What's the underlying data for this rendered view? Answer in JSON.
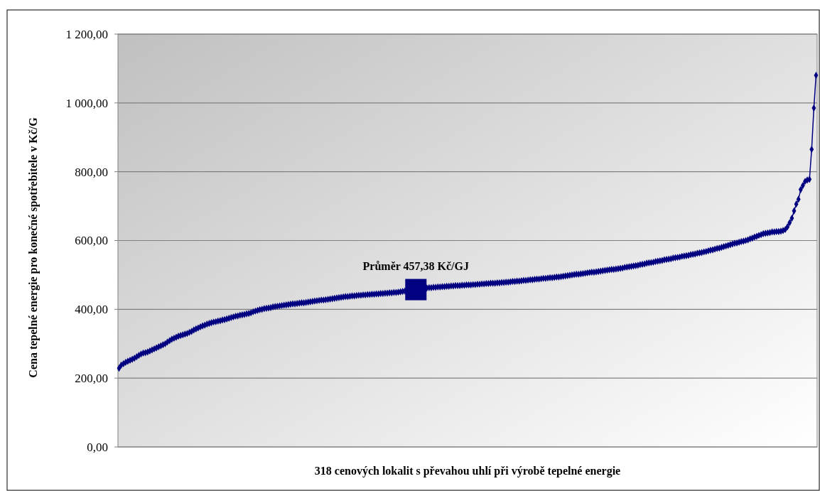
{
  "chart_data": {
    "type": "line",
    "xlabel": "318 cenových lokalit s převahou uhlí při výrobě tepelné energie",
    "ylabel": "Cena tepelné energie pro konečné spotřebitele v Kč/G",
    "categories": [
      null,
      null,
      null,
      null,
      null,
      null,
      null,
      null,
      null,
      null,
      null,
      null,
      null,
      null,
      null,
      null,
      null,
      null,
      null,
      null,
      null,
      null,
      null,
      null,
      null,
      null,
      null,
      null,
      null,
      null,
      null,
      null,
      null,
      null,
      null,
      null,
      null,
      null,
      null,
      null,
      null,
      null,
      null,
      null,
      null,
      null,
      null,
      null,
      null,
      null,
      null,
      null,
      null,
      null,
      null,
      null,
      null,
      null,
      null,
      null,
      null,
      null,
      null,
      null,
      null,
      null,
      null,
      null,
      null,
      null,
      null,
      null,
      null,
      null,
      null,
      null,
      null,
      null,
      null,
      null,
      null,
      null,
      null,
      null,
      null,
      null,
      null,
      null,
      null,
      null,
      null,
      null,
      null,
      null,
      null,
      null,
      null,
      null,
      null,
      null,
      null,
      null,
      null,
      null,
      null,
      null,
      null,
      null,
      null,
      null,
      null,
      null,
      null,
      null,
      null,
      null,
      null,
      null,
      null,
      null,
      null,
      null,
      null,
      null,
      null,
      null,
      null,
      null,
      null,
      null,
      null,
      null,
      null,
      null,
      null,
      null,
      null,
      null,
      null,
      null,
      null,
      null,
      null,
      null,
      null,
      null,
      null,
      null,
      null,
      null,
      null,
      null,
      null,
      null,
      null,
      null,
      null,
      null,
      null,
      null,
      null,
      null,
      null,
      null,
      null,
      null,
      null,
      null,
      null,
      null,
      null,
      null,
      null,
      null,
      null,
      null,
      null,
      null,
      null,
      null,
      null,
      null,
      null,
      null,
      null,
      null,
      null,
      null,
      null,
      null,
      null,
      null,
      null,
      null,
      null,
      null,
      null,
      null,
      null,
      null,
      null,
      null,
      null,
      null,
      null,
      null,
      null,
      null,
      null,
      null,
      null,
      null,
      null,
      null,
      null,
      null,
      null,
      null,
      null,
      null,
      null,
      null,
      null,
      null,
      null,
      null,
      null,
      null,
      null,
      null,
      null,
      null,
      null,
      null,
      null,
      null,
      null,
      null,
      null,
      null,
      null,
      null,
      null,
      null,
      null,
      null,
      null,
      null,
      null,
      null,
      null,
      null,
      null,
      null,
      null,
      null,
      null,
      null,
      null,
      null,
      null,
      null,
      null,
      null,
      null,
      null,
      null,
      null,
      null,
      null,
      null,
      null,
      null,
      null,
      null,
      null,
      null,
      null,
      null,
      null,
      null,
      null,
      null,
      null,
      null,
      null,
      null,
      null,
      null,
      null,
      null,
      null,
      null,
      null,
      null,
      null,
      null,
      null,
      null,
      null,
      null,
      null,
      null,
      null,
      null,
      null,
      null,
      null,
      null,
      null,
      null,
      null,
      null,
      null,
      null,
      null,
      null,
      null
    ],
    "ylim": [
      0,
      1200
    ],
    "yticks": [
      {
        "value": 0,
        "label": "0,00"
      },
      {
        "value": 200,
        "label": "200,00"
      },
      {
        "value": 400,
        "label": "400,00"
      },
      {
        "value": 600,
        "label": "600,00"
      },
      {
        "value": 800,
        "label": "800,00"
      },
      {
        "value": 1000,
        "label": "1 000,00"
      },
      {
        "value": 1200,
        "label": "1 200,00"
      }
    ],
    "tick_labels": "y",
    "grid": "y",
    "marker": "diamond",
    "line_style": "solid",
    "series": [
      {
        "color": "#000080",
        "values": [
          229,
          238,
          242,
          246,
          249,
          252,
          255,
          258,
          262,
          266,
          270,
          273,
          274,
          276,
          279,
          282,
          285,
          288,
          291,
          294,
          297,
          300,
          305,
          309,
          313,
          316,
          319,
          322,
          324,
          326,
          328,
          330,
          333,
          336,
          340,
          343,
          346,
          349,
          352,
          354,
          357,
          359,
          361,
          363,
          364,
          366,
          367,
          369,
          370,
          372,
          374,
          376,
          378,
          380,
          381,
          383,
          384,
          385,
          387,
          388,
          390,
          393,
          395,
          397,
          399,
          400,
          402,
          403,
          404,
          405,
          407,
          408,
          409,
          410,
          411,
          412,
          413,
          414,
          415,
          416,
          416,
          417,
          418,
          419,
          419,
          420,
          421,
          422,
          423,
          424,
          425,
          426,
          427,
          427,
          428,
          429,
          430,
          431,
          432,
          433,
          434,
          435,
          436,
          437,
          437,
          438,
          439,
          439,
          440,
          441,
          441,
          442,
          442,
          443,
          443,
          444,
          444,
          445,
          445,
          446,
          446,
          447,
          447,
          448,
          448,
          449,
          449,
          450,
          451,
          452,
          453,
          454,
          455,
          456,
          457,
          458,
          459,
          460,
          461,
          462,
          462,
          463,
          463,
          464,
          464,
          465,
          465,
          466,
          466,
          467,
          467,
          468,
          468,
          469,
          469,
          469,
          470,
          470,
          471,
          471,
          471,
          472,
          472,
          473,
          473,
          474,
          474,
          475,
          475,
          476,
          476,
          476,
          477,
          477,
          478,
          478,
          479,
          479,
          480,
          481,
          481,
          482,
          482,
          483,
          484,
          484,
          485,
          486,
          486,
          487,
          488,
          488,
          489,
          490,
          490,
          491,
          492,
          492,
          493,
          494,
          494,
          495,
          496,
          497,
          498,
          499,
          500,
          501,
          502,
          502,
          503,
          504,
          505,
          506,
          507,
          508,
          508,
          509,
          510,
          511,
          512,
          513,
          514,
          515,
          516,
          516,
          517,
          518,
          519,
          520,
          522,
          523,
          524,
          525,
          526,
          527,
          528,
          530,
          531,
          532,
          534,
          535,
          536,
          537,
          539,
          540,
          541,
          542,
          544,
          545,
          546,
          547,
          549,
          550,
          551,
          552,
          554,
          555,
          556,
          557,
          559,
          560,
          561,
          563,
          564,
          565,
          567,
          568,
          570,
          572,
          573,
          575,
          577,
          578,
          580,
          582,
          584,
          586,
          588,
          590,
          592,
          593,
          595,
          597,
          598,
          600,
          602,
          605,
          607,
          610,
          612,
          615,
          617,
          620,
          621,
          622,
          623,
          625,
          625,
          626,
          626,
          627,
          629,
          632,
          640,
          652,
          665,
          686,
          706,
          720,
          748,
          760,
          772,
          776,
          778,
          865,
          985,
          1080
        ]
      }
    ],
    "annotations": [
      {
        "text": "Průměr 457,38 Kč/GJ",
        "y": 457.38
      }
    ]
  }
}
